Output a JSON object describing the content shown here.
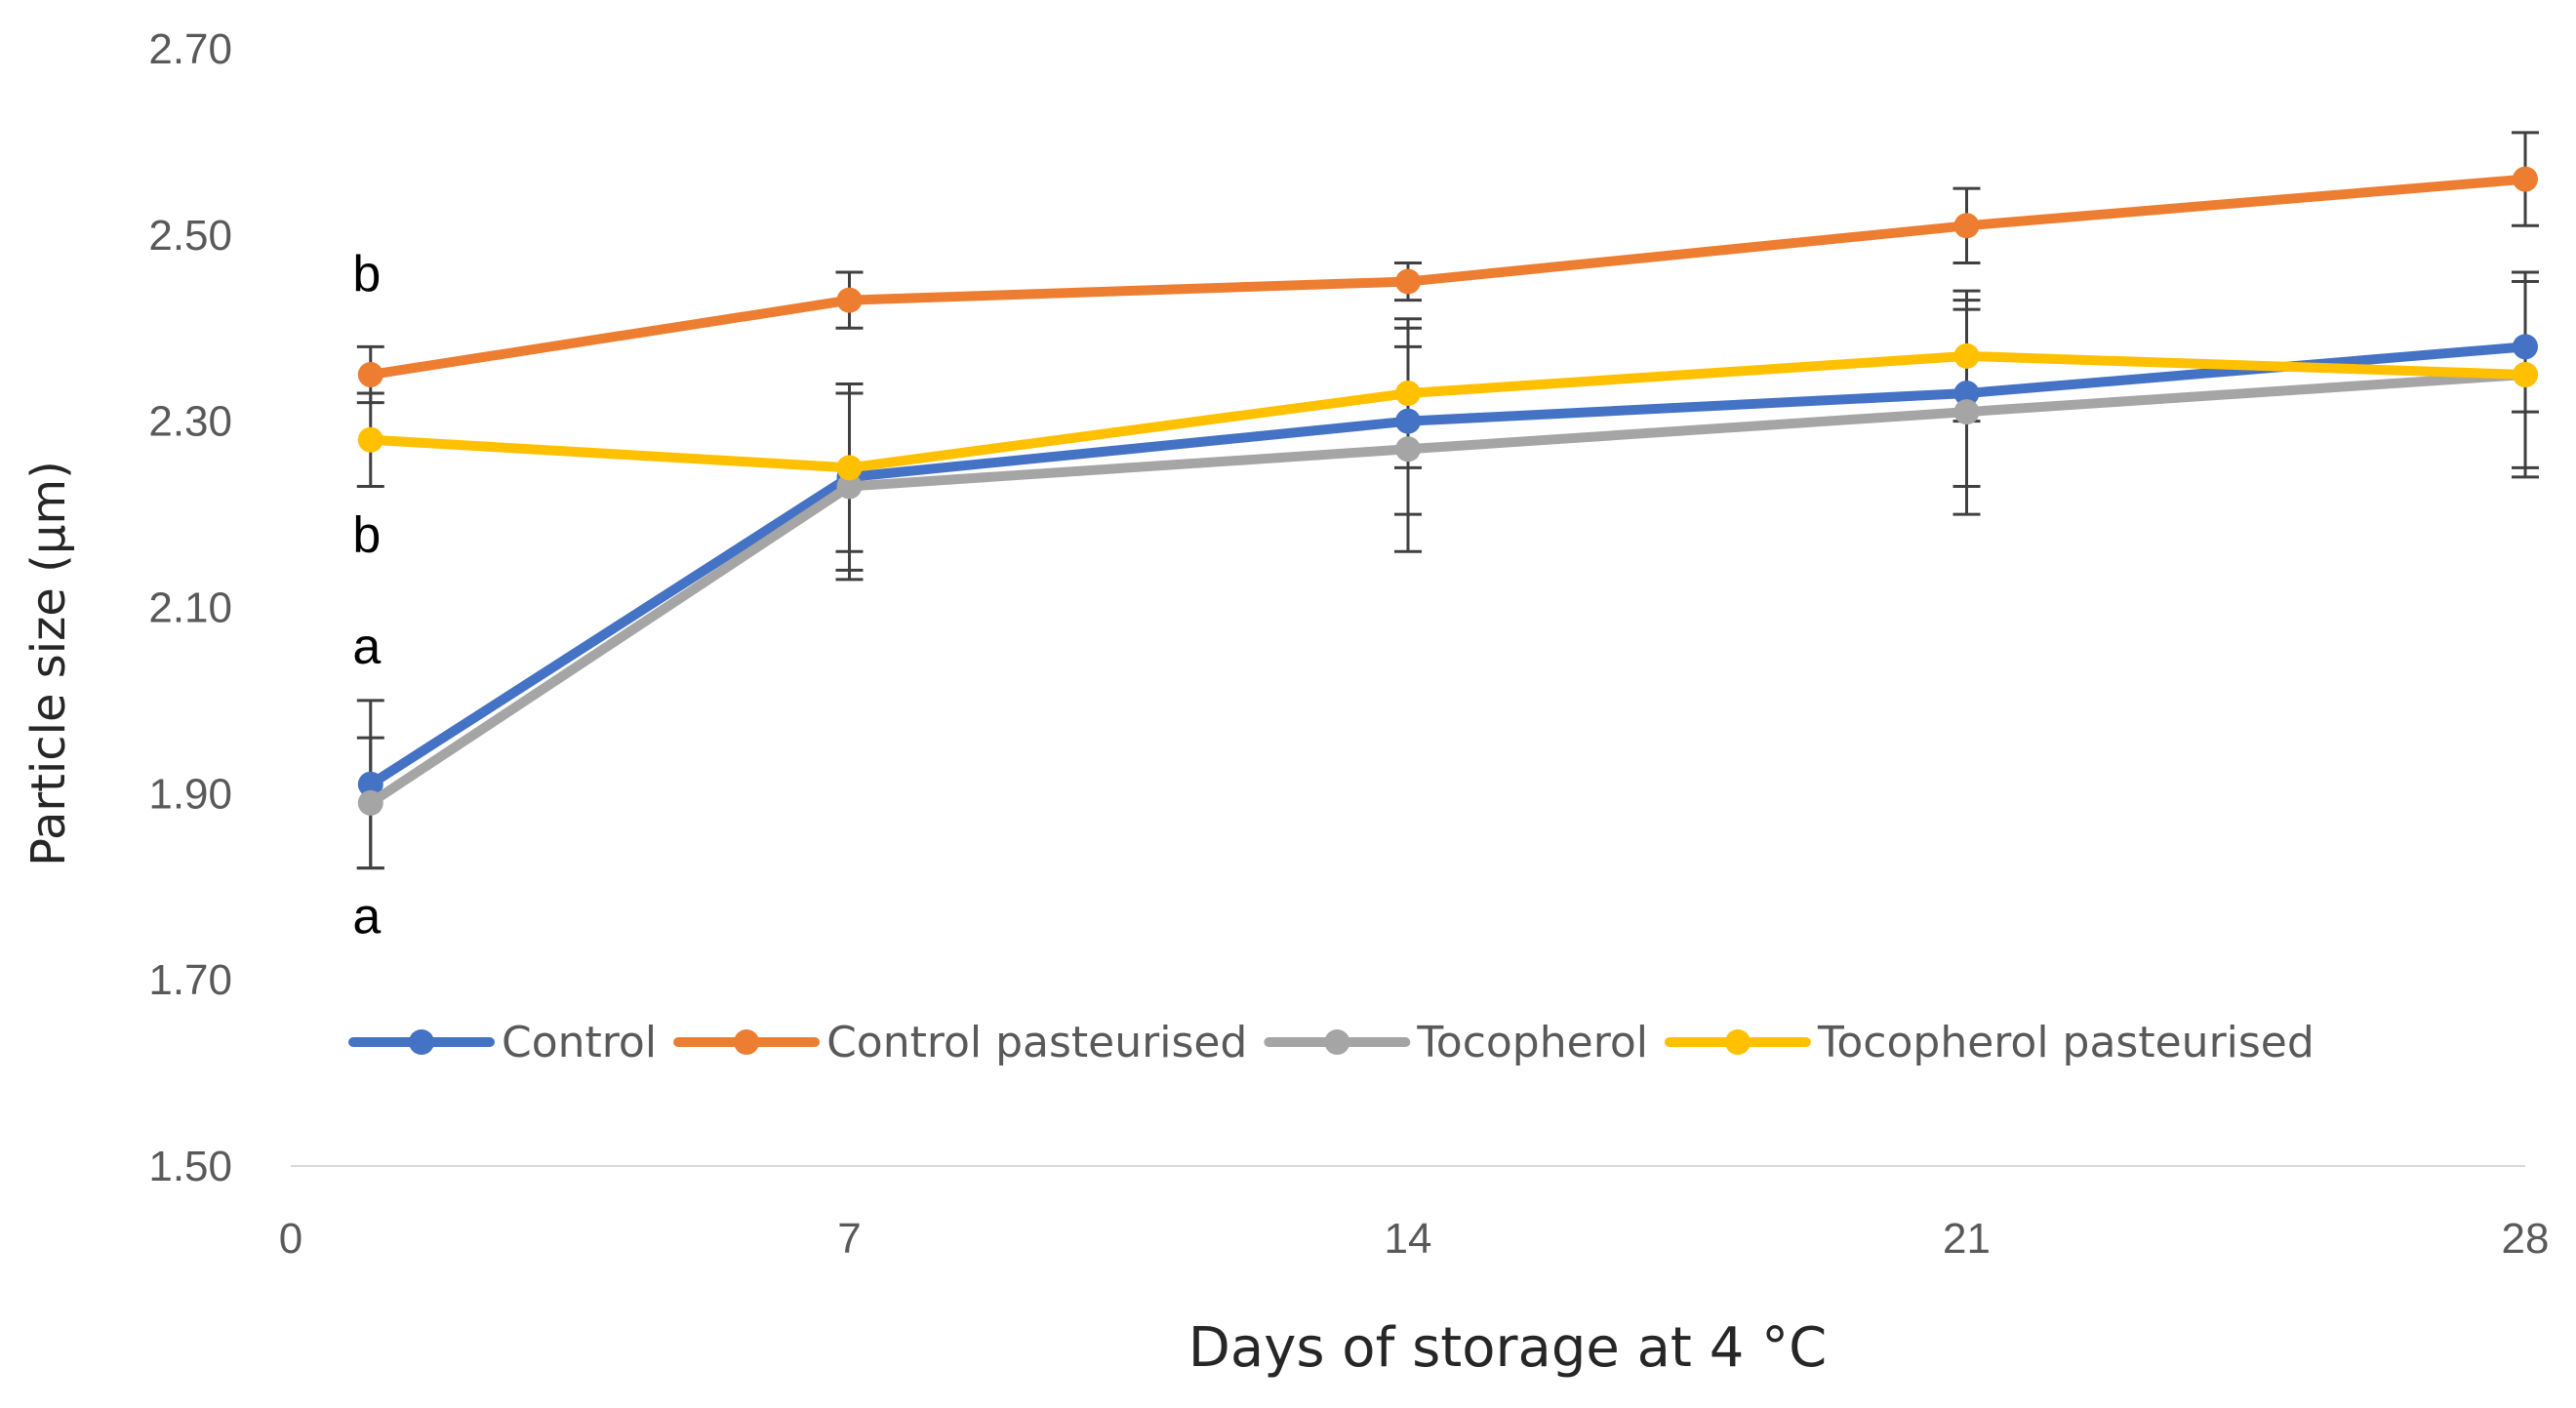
{
  "chart_data": {
    "type": "line",
    "title": "",
    "xlabel": "Days of storage at 4 °C",
    "ylabel": "Particle size (µm)",
    "xlim": [
      0,
      28
    ],
    "ylim": [
      1.5,
      2.7
    ],
    "x_ticks": [
      "0",
      "7",
      "14",
      "21",
      "28"
    ],
    "y_ticks": [
      "1.50",
      "1.70",
      "1.90",
      "2.10",
      "2.30",
      "2.50",
      "2.70"
    ],
    "x": [
      1,
      7,
      14,
      21,
      28
    ],
    "legend_position": "bottom-inside",
    "series": [
      {
        "name": "Control",
        "color": "#4472C4",
        "values": [
          1.91,
          2.24,
          2.3,
          2.33,
          2.38
        ],
        "errors": [
          0.09,
          0.1,
          0.1,
          0.1,
          0.07
        ]
      },
      {
        "name": "Control pasteurised",
        "color": "#ED7D31",
        "values": [
          2.35,
          2.43,
          2.45,
          2.51,
          2.56
        ],
        "errors": [
          0.03,
          0.03,
          0.02,
          0.04,
          0.05
        ]
      },
      {
        "name": "Tocopherol",
        "color": "#A5A5A5",
        "values": [
          1.89,
          2.23,
          2.27,
          2.31,
          2.35
        ],
        "errors": [
          0.07,
          0.1,
          0.11,
          0.11,
          0.11
        ]
      },
      {
        "name": "Tocopherol pasteurised",
        "color": "#FFC000",
        "values": [
          2.28,
          2.25,
          2.33,
          2.37,
          2.35
        ],
        "errors": [
          0.05,
          0.09,
          0.08,
          0.07,
          0.1
        ]
      }
    ],
    "annotations": [
      {
        "text": "b",
        "x": 1,
        "y": 2.44
      },
      {
        "text": "b",
        "x": 1,
        "y": 2.16
      },
      {
        "text": "a",
        "x": 1,
        "y": 2.04
      },
      {
        "text": "a",
        "x": 1,
        "y": 1.75
      }
    ],
    "grid": false
  }
}
